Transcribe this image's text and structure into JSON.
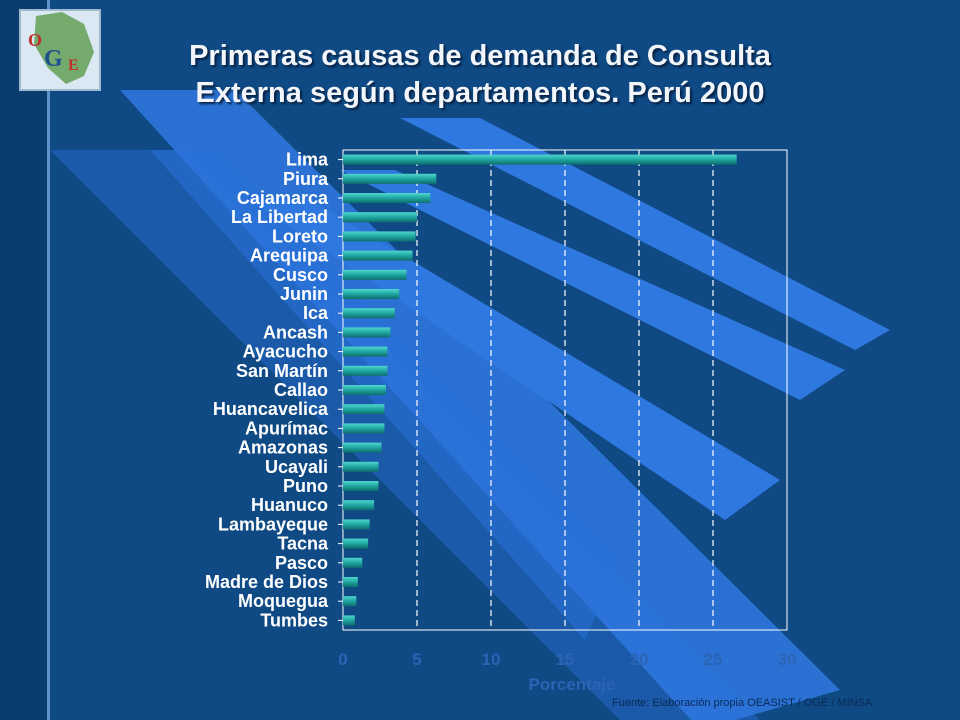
{
  "header": {
    "title_line1": "Primeras causas de demanda de Consulta",
    "title_line2": "Externa según departamentos. Perú 2000"
  },
  "logo": {
    "letters": [
      "O",
      "G",
      "E"
    ]
  },
  "footer": {
    "source": "Fuente: Elaboración propia OEASIST / OGE / MINSA"
  },
  "colors": {
    "background": "#0f4a85",
    "bar": "#1fa6a0",
    "bar_highlight": "#4fd6cf",
    "stripe": "#2f78e0"
  },
  "chart_data": {
    "type": "bar",
    "orientation": "horizontal",
    "title": "",
    "xlabel": "Porcentaje",
    "ylabel": "",
    "xlim": [
      0,
      30
    ],
    "xticks": [
      0,
      5,
      10,
      15,
      20,
      25,
      30
    ],
    "grid": "vertical dashed",
    "categories": [
      "Lima",
      "Piura",
      "Cajamarca",
      "La Libertad",
      "Loreto",
      "Arequipa",
      "Cusco",
      "Junin",
      "Ica",
      "Ancash",
      "Ayacucho",
      "San Martín",
      "Callao",
      "Huancavelica",
      "Apurímac",
      "Amazonas",
      "Ucayali",
      "Puno",
      "Huanuco",
      "Lambayeque",
      "Tacna",
      "Pasco",
      "Madre de Dios",
      "Moquegua",
      "Tumbes"
    ],
    "values": [
      26.6,
      6.3,
      5.9,
      5.0,
      4.9,
      4.7,
      4.3,
      3.8,
      3.5,
      3.2,
      3.0,
      3.0,
      2.9,
      2.8,
      2.8,
      2.6,
      2.4,
      2.4,
      2.1,
      1.8,
      1.7,
      1.3,
      1.0,
      0.9,
      0.8
    ]
  }
}
